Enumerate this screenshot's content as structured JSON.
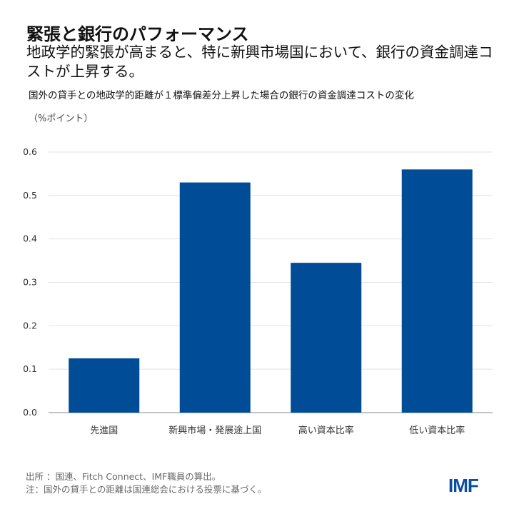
{
  "title": "緊張と銀行のパフォーマンス",
  "subtitle": "地政学的緊張が高まると、特に新興市場国において、銀行の資金調達コストが上昇する。",
  "description": "国外の貸手との地政学的距離が１標準偏差分上昇した場合の銀行の資金調達コストの変化",
  "unit": "（%ポイント）",
  "source": "出所 ：国連、Fitch Connect、IMF職員の算出。",
  "note": "注：国外の貸手との距離は国連総会における投票に基づく。",
  "logo": "IMF",
  "chart_data": {
    "type": "bar",
    "categories": [
      "先進国",
      "新興市場・発展途上国",
      "高い資本比率",
      "低い資本比率"
    ],
    "values": [
      0.125,
      0.53,
      0.345,
      0.56
    ],
    "ylim": [
      0,
      0.6
    ],
    "yticks": [
      "0.0",
      "0.1",
      "0.2",
      "0.3",
      "0.4",
      "0.5",
      "0.6"
    ],
    "grid": true,
    "bar_color": "#004c97"
  }
}
